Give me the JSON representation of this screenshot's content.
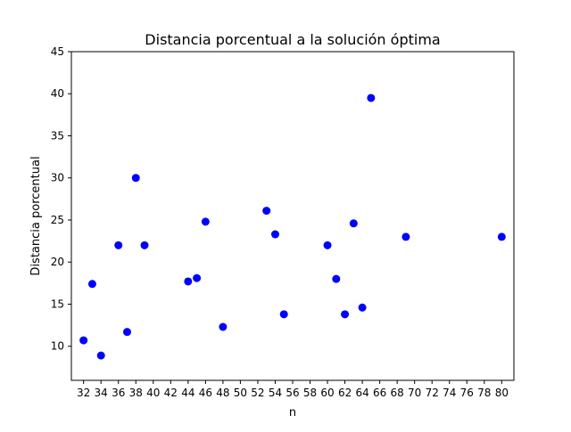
{
  "chart_data": {
    "type": "scatter",
    "title": "Distancia porcentual a la solución óptima",
    "xlabel": "n",
    "ylabel": "Distancia porcentual",
    "xlim": [
      30.6,
      81.4
    ],
    "ylim": [
      5.95,
      45
    ],
    "xticks": [
      32,
      34,
      36,
      38,
      40,
      42,
      44,
      46,
      48,
      50,
      52,
      54,
      56,
      58,
      60,
      62,
      64,
      66,
      68,
      70,
      72,
      74,
      76,
      78,
      80
    ],
    "yticks": [
      10,
      15,
      20,
      25,
      30,
      35,
      40,
      45
    ],
    "grid": false,
    "marker_color": "#0000ff",
    "points": [
      {
        "x": 32,
        "y": 10.7
      },
      {
        "x": 33,
        "y": 17.4
      },
      {
        "x": 34,
        "y": 8.9
      },
      {
        "x": 36,
        "y": 22.0
      },
      {
        "x": 37,
        "y": 11.7
      },
      {
        "x": 38,
        "y": 30.0
      },
      {
        "x": 39,
        "y": 22.0
      },
      {
        "x": 44,
        "y": 17.7
      },
      {
        "x": 45,
        "y": 18.1
      },
      {
        "x": 46,
        "y": 24.8
      },
      {
        "x": 48,
        "y": 12.3
      },
      {
        "x": 53,
        "y": 26.1
      },
      {
        "x": 54,
        "y": 23.3
      },
      {
        "x": 55,
        "y": 13.8
      },
      {
        "x": 60,
        "y": 22.0
      },
      {
        "x": 61,
        "y": 18.0
      },
      {
        "x": 62,
        "y": 13.8
      },
      {
        "x": 63,
        "y": 24.6
      },
      {
        "x": 64,
        "y": 14.6
      },
      {
        "x": 65,
        "y": 39.5
      },
      {
        "x": 69,
        "y": 23.0
      },
      {
        "x": 80,
        "y": 23.0
      }
    ]
  }
}
